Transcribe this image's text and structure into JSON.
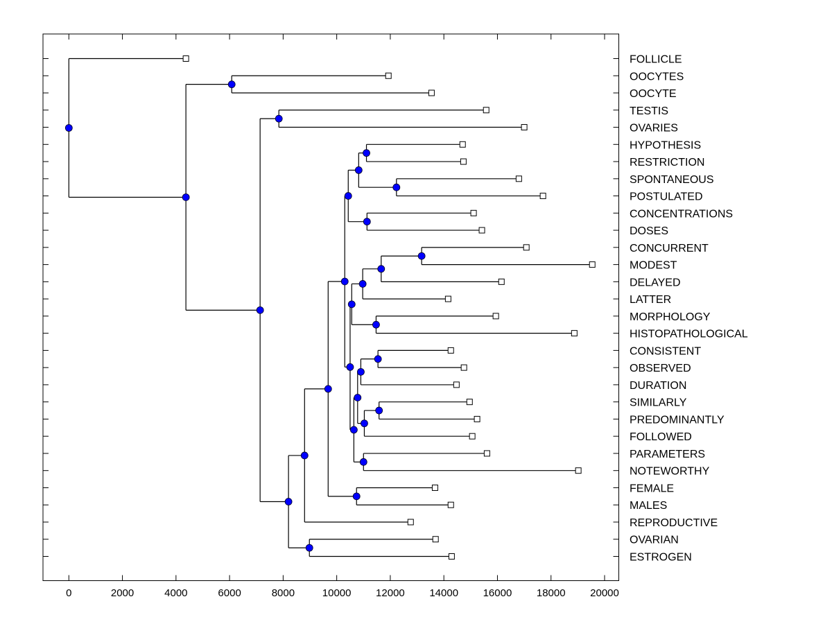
{
  "chart_data": {
    "type": "dendrogram",
    "title": "",
    "xlabel": "",
    "ylabel": "",
    "xlim": [
      -1000,
      20500
    ],
    "x_ticks": [
      0,
      2000,
      4000,
      6000,
      8000,
      10000,
      12000,
      14000,
      16000,
      18000,
      20000
    ],
    "x_tick_labels": [
      "0",
      "2000",
      "4000",
      "6000",
      "8000",
      "10000",
      "12000",
      "14000",
      "16000",
      "18000",
      "20000"
    ],
    "grid": false,
    "colors": {
      "internal_node": "#0000ff",
      "leaf_marker": "#ffffff",
      "line": "#000000"
    },
    "leaves": [
      {
        "label": "FOLLICLE",
        "x": 4370
      },
      {
        "label": "OOCYTES",
        "x": 11930
      },
      {
        "label": "OOCYTE",
        "x": 13540
      },
      {
        "label": "TESTIS",
        "x": 15580
      },
      {
        "label": "OVARIES",
        "x": 17000
      },
      {
        "label": "HYPOTHESIS",
        "x": 14700
      },
      {
        "label": "RESTRICTION",
        "x": 14730
      },
      {
        "label": "SPONTANEOUS",
        "x": 16800
      },
      {
        "label": "POSTULATED",
        "x": 17700
      },
      {
        "label": "CONCENTRATIONS",
        "x": 15110
      },
      {
        "label": "DOSES",
        "x": 15420
      },
      {
        "label": "CONCURRENT",
        "x": 17080
      },
      {
        "label": "MODEST",
        "x": 19540
      },
      {
        "label": "DELAYED",
        "x": 16150
      },
      {
        "label": "LATTER",
        "x": 14160
      },
      {
        "label": "MORPHOLOGY",
        "x": 15940
      },
      {
        "label": "HISTOPATHOLOGICAL",
        "x": 18870
      },
      {
        "label": "CONSISTENT",
        "x": 14260
      },
      {
        "label": "OBSERVED",
        "x": 14750
      },
      {
        "label": "DURATION",
        "x": 14470
      },
      {
        "label": "SIMILARLY",
        "x": 14960
      },
      {
        "label": "PREDOMINANTLY",
        "x": 15240
      },
      {
        "label": "FOLLOWED",
        "x": 15060
      },
      {
        "label": "PARAMETERS",
        "x": 15610
      },
      {
        "label": "NOTEWORTHY",
        "x": 19020
      },
      {
        "label": "FEMALE",
        "x": 13670
      },
      {
        "label": "MALES",
        "x": 14260
      },
      {
        "label": "REPRODUCTIVE",
        "x": 12760
      },
      {
        "label": "OVARIAN",
        "x": 13690
      },
      {
        "label": "ESTROGEN",
        "x": 14290
      }
    ],
    "nodes": [
      {
        "id": "n_oocytes",
        "x": 6080,
        "children": [
          "L1",
          "L2"
        ]
      },
      {
        "id": "n_testis",
        "x": 7840,
        "children": [
          "L3",
          "L4"
        ]
      },
      {
        "id": "n_hyp",
        "x": 11110,
        "children": [
          "L5",
          "L6"
        ]
      },
      {
        "id": "n_spont",
        "x": 12230,
        "children": [
          "L7",
          "L8"
        ]
      },
      {
        "id": "n_hyp_spont",
        "x": 10820,
        "children": [
          "n_hyp",
          "n_spont"
        ]
      },
      {
        "id": "n_conc",
        "x": 11130,
        "children": [
          "L9",
          "L10"
        ]
      },
      {
        "id": "n_hyp_conc",
        "x": 10430,
        "children": [
          "n_hyp_spont",
          "n_conc"
        ]
      },
      {
        "id": "n_concurrent",
        "x": 13170,
        "children": [
          "L11",
          "L12"
        ]
      },
      {
        "id": "n_delayed",
        "x": 11660,
        "children": [
          "n_concurrent",
          "L13"
        ]
      },
      {
        "id": "n_latter",
        "x": 10970,
        "children": [
          "n_delayed",
          "L14"
        ]
      },
      {
        "id": "n_morph",
        "x": 11470,
        "children": [
          "L15",
          "L16"
        ]
      },
      {
        "id": "n_latter_morph",
        "x": 10560,
        "children": [
          "n_latter",
          "n_morph"
        ]
      },
      {
        "id": "n_consistent",
        "x": 11540,
        "children": [
          "L17",
          "L18"
        ]
      },
      {
        "id": "n_duration",
        "x": 10900,
        "children": [
          "n_consistent",
          "L19"
        ]
      },
      {
        "id": "n_similarly",
        "x": 11580,
        "children": [
          "L20",
          "L21"
        ]
      },
      {
        "id": "n_followed",
        "x": 11030,
        "children": [
          "n_similarly",
          "L22"
        ]
      },
      {
        "id": "n_dur_fol",
        "x": 10780,
        "children": [
          "n_duration",
          "n_followed"
        ]
      },
      {
        "id": "n_param",
        "x": 11000,
        "children": [
          "L23",
          "L24"
        ]
      },
      {
        "id": "n_dur_param",
        "x": 10640,
        "children": [
          "n_dur_fol",
          "n_param"
        ]
      },
      {
        "id": "n_mid",
        "x": 10500,
        "children": [
          "n_latter_morph",
          "n_dur_param"
        ]
      },
      {
        "id": "n_big",
        "x": 10300,
        "children": [
          "n_hyp_conc",
          "n_mid"
        ]
      },
      {
        "id": "n_female",
        "x": 10740,
        "children": [
          "L25",
          "L26"
        ]
      },
      {
        "id": "n_big_female",
        "x": 9680,
        "children": [
          "n_big",
          "n_female"
        ]
      },
      {
        "id": "n_repro",
        "x": 8800,
        "children": [
          "n_big_female",
          "L27"
        ]
      },
      {
        "id": "n_ovarian",
        "x": 8980,
        "children": [
          "L28",
          "L29"
        ]
      },
      {
        "id": "n_repro_ovarian",
        "x": 8200,
        "children": [
          "n_repro",
          "n_ovarian"
        ]
      },
      {
        "id": "n_testis_rest",
        "x": 7140,
        "children": [
          "n_testis",
          "n_repro_ovarian"
        ]
      },
      {
        "id": "n_oocytes_rest",
        "x": 4370,
        "children": [
          "n_oocytes",
          "n_testis_rest"
        ]
      },
      {
        "id": "n_root",
        "x": 0,
        "children": [
          "L0",
          "n_oocytes_rest"
        ]
      }
    ]
  }
}
